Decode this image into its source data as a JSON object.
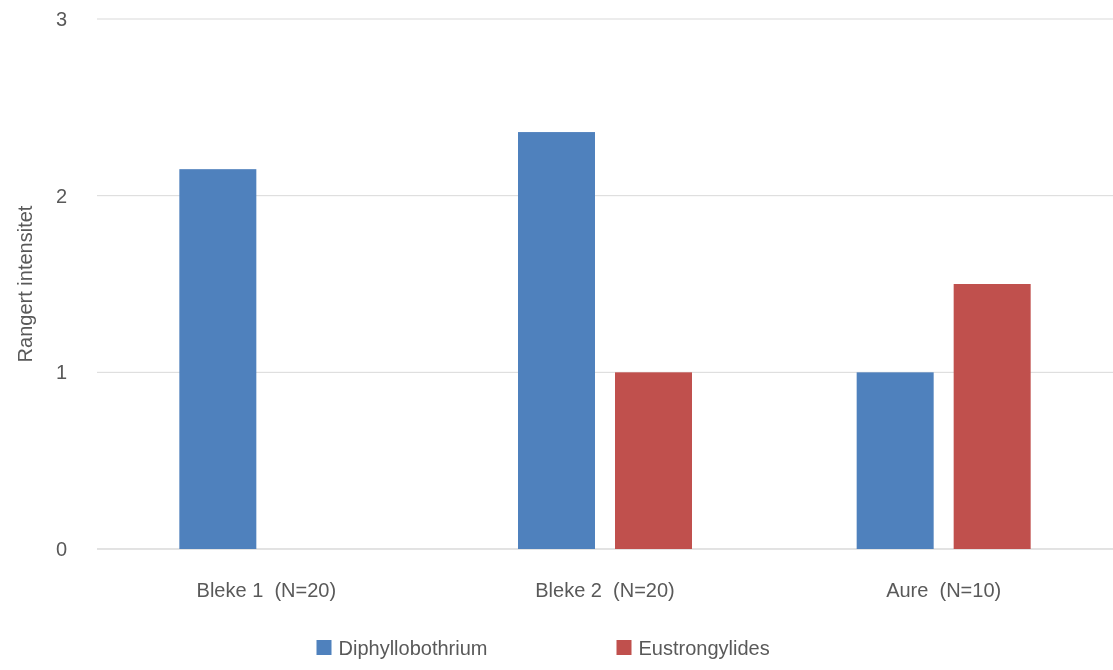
{
  "chart_data": {
    "type": "bar",
    "ylabel": "Rangert intensitet",
    "categories": [
      "Bleke 1  (N=20)",
      "Bleke 2  (N=20)",
      "Aure  (N=10)"
    ],
    "series": [
      {
        "name": "Diphyllobothrium",
        "color": "#4f81bd",
        "values": [
          2.15,
          2.36,
          1.0
        ]
      },
      {
        "name": "Eustrongylides",
        "color": "#c0504d",
        "values": [
          null,
          1.0,
          1.5
        ]
      }
    ],
    "ylim": [
      0,
      3
    ],
    "yticks": [
      0,
      1,
      2,
      3
    ],
    "grid": "y",
    "legend": "bottom"
  }
}
